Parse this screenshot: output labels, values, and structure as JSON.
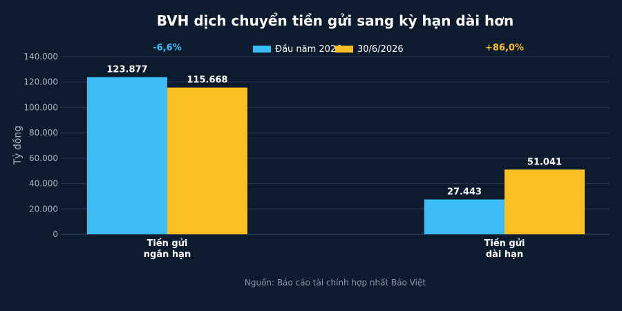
{
  "chart_data": {
    "type": "bar",
    "title": "BVH dịch chuyển tiền gửi sang kỳ hạn dài hơn",
    "ylabel": "Tỷ đồng",
    "ylim": [
      0,
      140000
    ],
    "yticks": [
      0,
      20000,
      40000,
      60000,
      80000,
      100000,
      120000,
      140000
    ],
    "ytick_labels": [
      "0",
      "20.000",
      "40.000",
      "60.000",
      "80.000",
      "100.000",
      "120.000",
      "140.000"
    ],
    "categories": [
      [
        "Tiền gửi",
        "ngắn hạn"
      ],
      [
        "Tiền gửi",
        "dài hạn"
      ]
    ],
    "series": [
      {
        "name": "Đầu năm 2026",
        "color": "#3bbcf7",
        "values": [
          123877,
          27443
        ],
        "labels": [
          "123.877",
          "27.443"
        ]
      },
      {
        "name": "30/6/2026",
        "color": "#fbbf24",
        "values": [
          115668,
          51041
        ],
        "labels": [
          "115.668",
          "51.041"
        ]
      }
    ],
    "annotations": [
      {
        "text": "-6,6%",
        "color": "#3bbcf7"
      },
      {
        "text": "+86,0%",
        "color": "#fbbf24"
      }
    ],
    "legend_position": "top-center",
    "grid": true
  },
  "source": "Nguồn: Báo cáo tài chính hợp nhất Bảo Việt"
}
